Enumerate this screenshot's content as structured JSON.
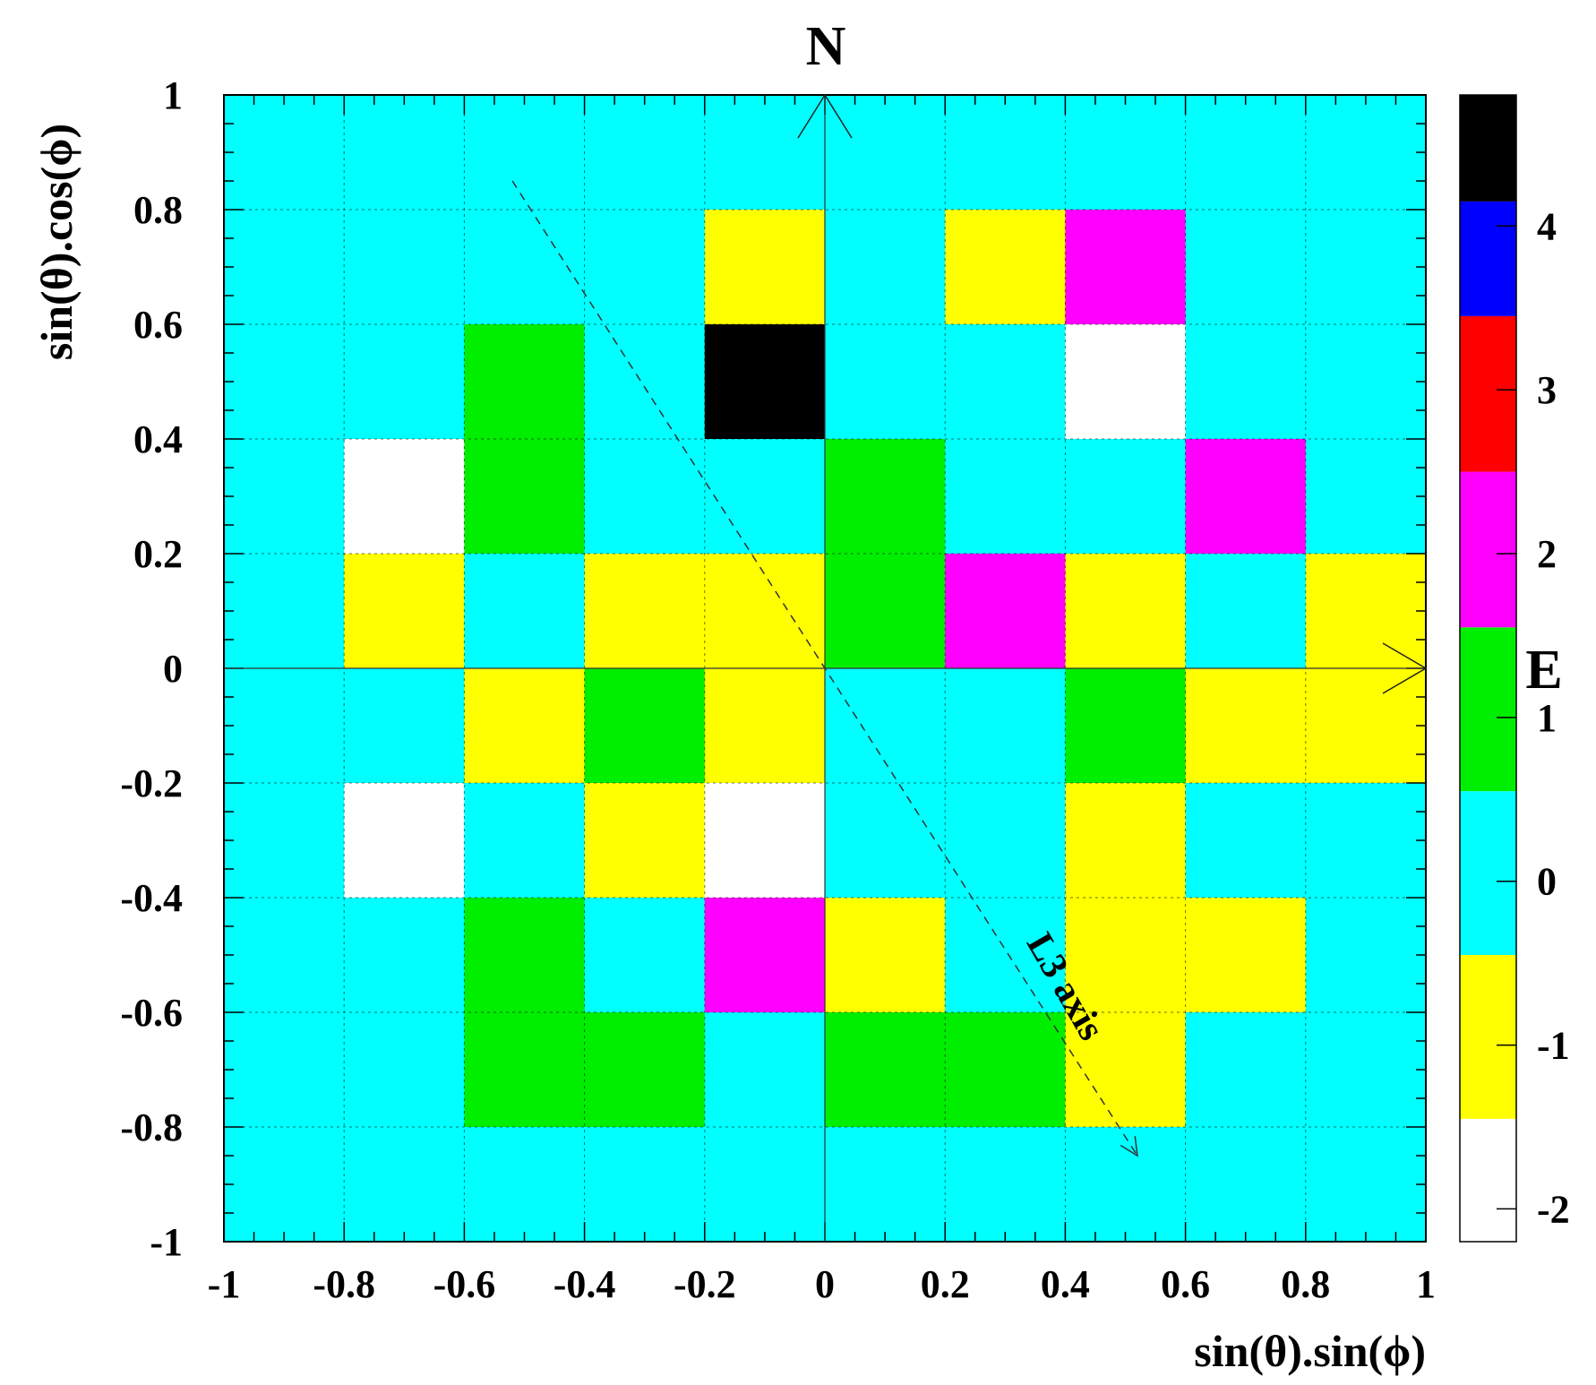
{
  "chart_data": {
    "type": "heatmap",
    "xlabel": "sin(θ).sin(ϕ)",
    "ylabel": "sin(θ).cos(ϕ)",
    "xlim": [
      -1,
      1
    ],
    "ylim": [
      -1,
      1
    ],
    "x_ticks": [
      "-1",
      "-0.8",
      "-0.6",
      "-0.4",
      "-0.2",
      "0",
      "0.2",
      "0.4",
      "0.6",
      "0.8",
      "1"
    ],
    "y_ticks": [
      "-1",
      "-0.8",
      "-0.6",
      "-0.4",
      "-0.2",
      "0",
      "0.2",
      "0.4",
      "0.6",
      "0.8",
      "1"
    ],
    "grid": true,
    "cell_size": 0.2,
    "x_bin_edges_note": "columns run x = -1..1, rows listed from top (y = 0.8..1) to bottom (y = -1..-0.8)",
    "z_rows_top_to_bottom": [
      [
        0,
        0,
        0,
        0,
        0,
        0,
        0,
        0,
        0,
        0
      ],
      [
        0,
        0,
        0,
        0,
        -1,
        0,
        -1,
        2,
        0,
        0
      ],
      [
        0,
        0,
        1,
        0,
        4,
        0,
        0,
        -2,
        0,
        0
      ],
      [
        0,
        -2,
        1,
        0,
        0,
        1,
        0,
        0,
        2,
        0
      ],
      [
        0,
        -1,
        0,
        -1,
        -1,
        1,
        2,
        -1,
        0,
        -1
      ],
      [
        0,
        0,
        -1,
        1,
        -1,
        0,
        0,
        1,
        -1,
        -1
      ],
      [
        0,
        -2,
        0,
        -1,
        -2,
        0,
        0,
        -1,
        0,
        0
      ],
      [
        0,
        0,
        1,
        0,
        2,
        -1,
        0,
        -1,
        -1,
        0
      ],
      [
        0,
        0,
        1,
        1,
        0,
        1,
        1,
        -1,
        0,
        0
      ],
      [
        0,
        0,
        0,
        0,
        0,
        0,
        0,
        0,
        0,
        0
      ]
    ],
    "color_scale": {
      "ticks": [
        "4",
        "3",
        "2",
        "1",
        "0",
        "-1",
        "-2"
      ],
      "levels": [
        {
          "value": -2,
          "color": "#ffffff"
        },
        {
          "value": -1,
          "color": "#ffff00"
        },
        {
          "value": 0,
          "color": "#00ffff"
        },
        {
          "value": 1,
          "color": "#00ee00"
        },
        {
          "value": 2,
          "color": "#ff00ff"
        },
        {
          "value": 3,
          "color": "#ff0000"
        },
        {
          "value": 3.5,
          "color": "#0000ff"
        },
        {
          "value": 4,
          "color": "#000000"
        }
      ]
    },
    "annotations": {
      "north": "N",
      "east": "E",
      "l3_axis": "L3 axis",
      "l3_axis_line": {
        "from": [
          -0.52,
          0.85
        ],
        "to": [
          0.52,
          -0.85
        ]
      }
    }
  }
}
